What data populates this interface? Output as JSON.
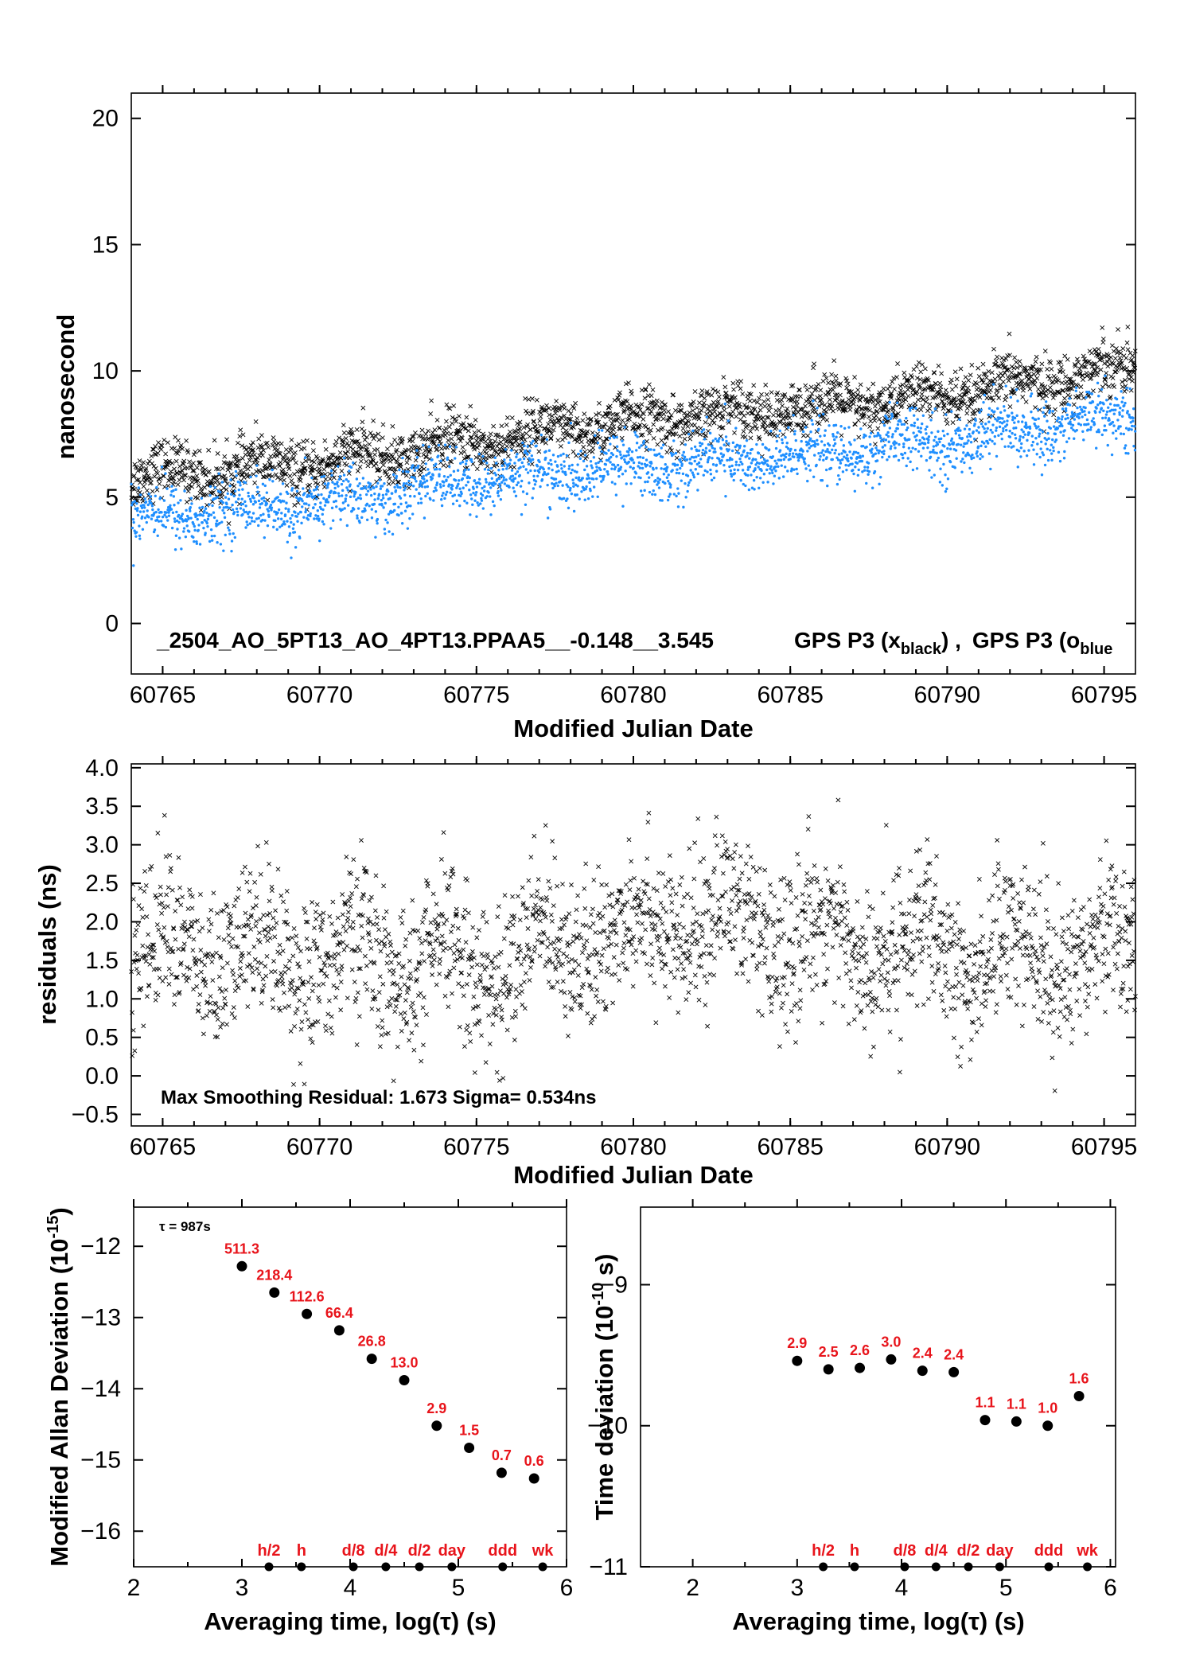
{
  "chart_data": [
    {
      "type": "scatter",
      "xlabel": "Modified Julian Date",
      "ylabel": "nanosecond",
      "xlim": [
        60764.0,
        60796.0
      ],
      "ylim": [
        -2,
        21
      ],
      "xticks": [
        60765,
        60770,
        60775,
        60780,
        60785,
        60790,
        60795
      ],
      "yticks": [
        0,
        5,
        10,
        15,
        20
      ],
      "annotation": "_2504_AO_5PT13_AO_4PT13.PPAA5__-0.148__3.545",
      "legend": {
        "prefix1": "GPS P3 (x",
        "sub1": "black",
        "suffix1": ") ,",
        "prefix2": "GPS P3 (o",
        "sub2": "blue"
      },
      "series": [
        {
          "marker": "x",
          "color": "#000000",
          "trend_x": [
            60764,
            60770,
            60775,
            60780,
            60785,
            60790,
            60796
          ],
          "trend_y": [
            5.8,
            6.3,
            7.2,
            8.0,
            8.5,
            9.0,
            10.2
          ],
          "spread": 0.55
        },
        {
          "marker": "o",
          "color": "#1f8fff",
          "trend_x": [
            60764,
            60770,
            60775,
            60780,
            60785,
            60790,
            60796
          ],
          "trend_y": [
            4.2,
            4.7,
            5.7,
            6.2,
            6.6,
            7.2,
            8.3
          ],
          "spread": 0.6
        }
      ]
    },
    {
      "type": "scatter",
      "xlabel": "Modified Julian Date",
      "ylabel": "residuals (ns)",
      "xlim": [
        60764.0,
        60796.0
      ],
      "ylim": [
        -0.65,
        4.05
      ],
      "xticks": [
        60765,
        60770,
        60775,
        60780,
        60785,
        60790,
        60795
      ],
      "yticks": [
        "-0.5",
        "0.0",
        "0.5",
        "1.0",
        "1.5",
        "2.0",
        "2.5",
        "3.0",
        "3.5",
        "4.0"
      ],
      "annotation": "Max Smoothing Residual: 1.673  Sigma= 0.534ns",
      "series": [
        {
          "marker": "x",
          "color": "#000000",
          "trend_x": [
            60764,
            60770,
            60775,
            60778,
            60782,
            60786,
            60790,
            60793,
            60796
          ],
          "trend_y": [
            1.65,
            1.55,
            1.4,
            1.75,
            2.05,
            1.75,
            1.55,
            1.6,
            1.7
          ],
          "spread": 0.5
        }
      ]
    },
    {
      "type": "scatter",
      "xlabel": "Averaging time, log(τ) (s)",
      "ylabel": "Modified Allan Deviation (10",
      "ylabel_sup": "-15",
      "ylabel_end": ")",
      "xlim": [
        2,
        6
      ],
      "ylim": [
        -16.5,
        -11.45
      ],
      "xticks": [
        2,
        3,
        4,
        5,
        6
      ],
      "yticks": [
        -12,
        -13,
        -14,
        -15,
        -16
      ],
      "tau_label": "τ = 987s",
      "x": [
        3.0,
        3.3,
        3.6,
        3.9,
        4.2,
        4.5,
        4.8,
        5.1,
        5.4,
        5.7
      ],
      "y": [
        -12.28,
        -12.65,
        -12.95,
        -13.18,
        -13.58,
        -13.88,
        -14.52,
        -14.83,
        -15.18,
        -15.26
      ],
      "value_labels": [
        "511.3",
        "218.4",
        "112.6",
        "66.4",
        "26.8",
        "13.0",
        "2.9",
        "1.5",
        "0.7",
        "0.6"
      ],
      "marker_x": [
        3.25,
        3.55,
        4.03,
        4.33,
        4.64,
        4.94,
        5.41,
        5.78
      ],
      "marker_labels": [
        "h/2",
        "h",
        "d/8",
        "d/4",
        "d/2",
        "day",
        "ddd",
        "wk"
      ]
    },
    {
      "type": "scatter",
      "xlabel": "Averaging time, log(τ) (s)",
      "ylabel": "Time deviation (10",
      "ylabel_sup": "-10",
      "ylabel_end": " s)",
      "xlim": [
        1.5,
        6.05
      ],
      "ylim": [
        -11,
        -8.45
      ],
      "xticks": [
        2,
        3,
        4,
        5,
        6
      ],
      "yticks": [
        -9,
        -10,
        -11
      ],
      "x": [
        3.0,
        3.3,
        3.6,
        3.9,
        4.2,
        4.5,
        4.8,
        5.1,
        5.4,
        5.7
      ],
      "y": [
        -9.54,
        -9.6,
        -9.59,
        -9.53,
        -9.61,
        -9.62,
        -9.96,
        -9.97,
        -10.0,
        -9.79
      ],
      "value_labels": [
        "2.9",
        "2.5",
        "2.6",
        "3.0",
        "2.4",
        "2.4",
        "1.1",
        "1.1",
        "1.0",
        "1.6"
      ],
      "marker_x": [
        3.25,
        3.55,
        4.03,
        4.33,
        4.64,
        4.94,
        5.41,
        5.78
      ],
      "marker_labels": [
        "h/2",
        "h",
        "d/8",
        "d/4",
        "d/2",
        "day",
        "ddd",
        "wk"
      ]
    }
  ]
}
